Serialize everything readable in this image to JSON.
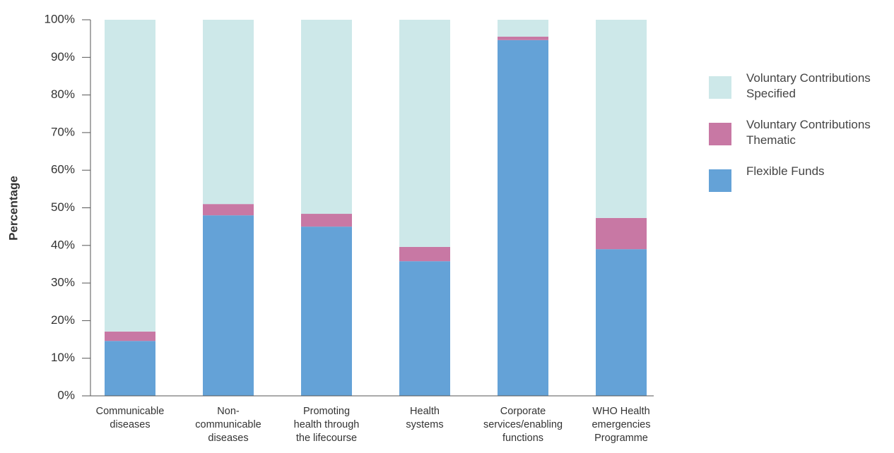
{
  "chart_data": {
    "type": "stacked_bar",
    "ylabel": "Percentage",
    "categories": [
      [
        "Communicable",
        "diseases"
      ],
      [
        "Non-",
        "communicable",
        "diseases"
      ],
      [
        "Promoting",
        "health through",
        "the lifecourse"
      ],
      [
        "Health",
        "systems"
      ],
      [
        "Corporate",
        "services/enabling",
        "functions"
      ],
      [
        "WHO Health",
        "emergencies",
        "Programme"
      ]
    ],
    "series": [
      {
        "name": "Flexible Funds",
        "color": "#64a2d7",
        "values": [
          14.6,
          48,
          45,
          35.8,
          94.6,
          39
        ]
      },
      {
        "name": "Voluntary Contributions Thematic",
        "color": "#c878a4",
        "values": [
          2.5,
          3,
          3.4,
          3.8,
          0.9,
          8.3
        ]
      },
      {
        "name": "Voluntary Contributions Specified",
        "color": "#cde8e9",
        "values": [
          82.9,
          49,
          51.6,
          60.4,
          4.5,
          52.7
        ]
      }
    ],
    "ylim": [
      0,
      100
    ],
    "yticks": [
      {
        "value": 0,
        "label": "0%"
      },
      {
        "value": 10,
        "label": "10%"
      },
      {
        "value": 20,
        "label": "20%"
      },
      {
        "value": 30,
        "label": "30%"
      },
      {
        "value": 40,
        "label": "40%"
      },
      {
        "value": 50,
        "label": "50%"
      },
      {
        "value": 60,
        "label": "60%"
      },
      {
        "value": 70,
        "label": "70%"
      },
      {
        "value": 80,
        "label": "80%"
      },
      {
        "value": 90,
        "label": "90%"
      },
      {
        "value": 100,
        "label": "100%"
      }
    ]
  }
}
